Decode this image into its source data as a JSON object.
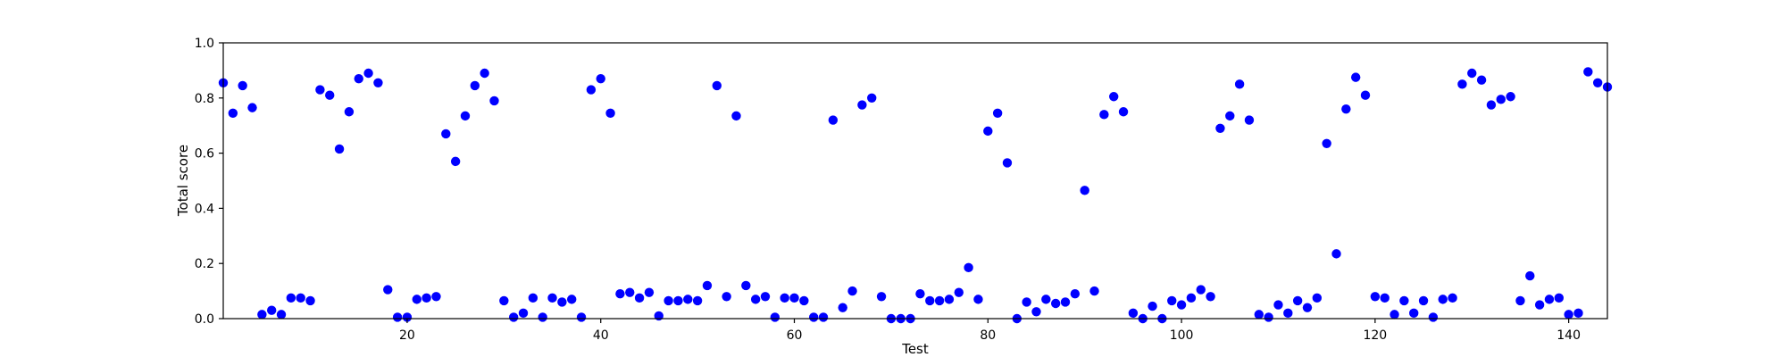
{
  "chart_data": {
    "type": "scatter",
    "title": "",
    "xlabel": "Test",
    "ylabel": "Total score",
    "xlim": [
      1,
      144
    ],
    "ylim": [
      0.0,
      1.0
    ],
    "xticks": [
      20,
      40,
      60,
      80,
      100,
      120,
      140
    ],
    "yticks": [
      "0.0",
      "0.2",
      "0.4",
      "0.6",
      "0.8",
      "1.0"
    ],
    "grid": false,
    "legend": "none",
    "marker_color": "#0000ff",
    "series": [
      {
        "x": [
          1,
          2,
          3,
          4,
          5,
          6,
          7,
          8,
          9,
          10,
          11,
          12,
          13,
          14,
          15,
          16,
          17,
          18,
          19,
          20,
          21,
          22,
          23,
          24,
          25,
          26,
          27,
          28,
          29,
          30,
          31,
          32,
          33,
          34,
          35,
          36,
          37,
          38,
          39,
          40,
          41,
          42,
          43,
          44,
          45,
          46,
          47,
          48,
          49,
          50,
          51,
          52,
          53,
          54,
          55,
          56,
          57,
          58,
          59,
          60,
          61,
          62,
          63,
          64,
          65,
          66,
          67,
          68,
          69,
          70,
          71,
          72,
          73,
          74,
          75,
          76,
          77,
          78,
          79,
          80,
          81,
          82,
          83,
          84,
          85,
          86,
          87,
          88,
          89,
          90,
          91,
          92,
          93,
          94,
          95,
          96,
          97,
          98,
          99,
          100,
          101,
          102,
          103,
          104,
          105,
          106,
          107,
          108,
          109,
          110,
          111,
          112,
          113,
          114,
          115,
          116,
          117,
          118,
          119,
          120,
          121,
          122,
          123,
          124,
          125,
          126,
          127,
          128,
          129,
          130,
          131,
          132,
          133,
          134,
          135,
          136,
          137,
          138,
          139,
          140,
          141,
          142,
          143,
          144
        ],
        "y": [
          0.855,
          0.745,
          0.845,
          0.765,
          0.015,
          0.03,
          0.015,
          0.075,
          0.075,
          0.065,
          0.83,
          0.81,
          0.615,
          0.75,
          0.87,
          0.89,
          0.855,
          0.105,
          0.005,
          0.005,
          0.07,
          0.075,
          0.08,
          0.67,
          0.57,
          0.735,
          0.845,
          0.89,
          0.79,
          0.065,
          0.005,
          0.02,
          0.075,
          0.005,
          0.075,
          0.06,
          0.07,
          0.005,
          0.83,
          0.87,
          0.745,
          0.09,
          0.095,
          0.075,
          0.095,
          0.01,
          0.065,
          0.065,
          0.07,
          0.065,
          0.12,
          0.845,
          0.08,
          0.735,
          0.12,
          0.07,
          0.08,
          0.005,
          0.075,
          0.075,
          0.065,
          0.005,
          0.005,
          0.72,
          0.04,
          0.1,
          0.775,
          0.8,
          0.08,
          0.0,
          0.0,
          0.0,
          0.09,
          0.065,
          0.065,
          0.07,
          0.095,
          0.185,
          0.07,
          0.68,
          0.745,
          0.565,
          0.0,
          0.06,
          0.025,
          0.07,
          0.055,
          0.06,
          0.09,
          0.465,
          0.1,
          0.74,
          0.805,
          0.75,
          0.02,
          0.0,
          0.045,
          0.0,
          0.065,
          0.05,
          0.075,
          0.105,
          0.08,
          0.69,
          0.735,
          0.85,
          0.72,
          0.015,
          0.005,
          0.05,
          0.02,
          0.065,
          0.04,
          0.075,
          0.635,
          0.235,
          0.76,
          0.875,
          0.81,
          0.08,
          0.075,
          0.015,
          0.065,
          0.02,
          0.065,
          0.005,
          0.07,
          0.075,
          0.85,
          0.89,
          0.865,
          0.775,
          0.795,
          0.805,
          0.065,
          0.155,
          0.05,
          0.07,
          0.075,
          0.015,
          0.02,
          0.895,
          0.855,
          0.84
        ]
      }
    ]
  }
}
